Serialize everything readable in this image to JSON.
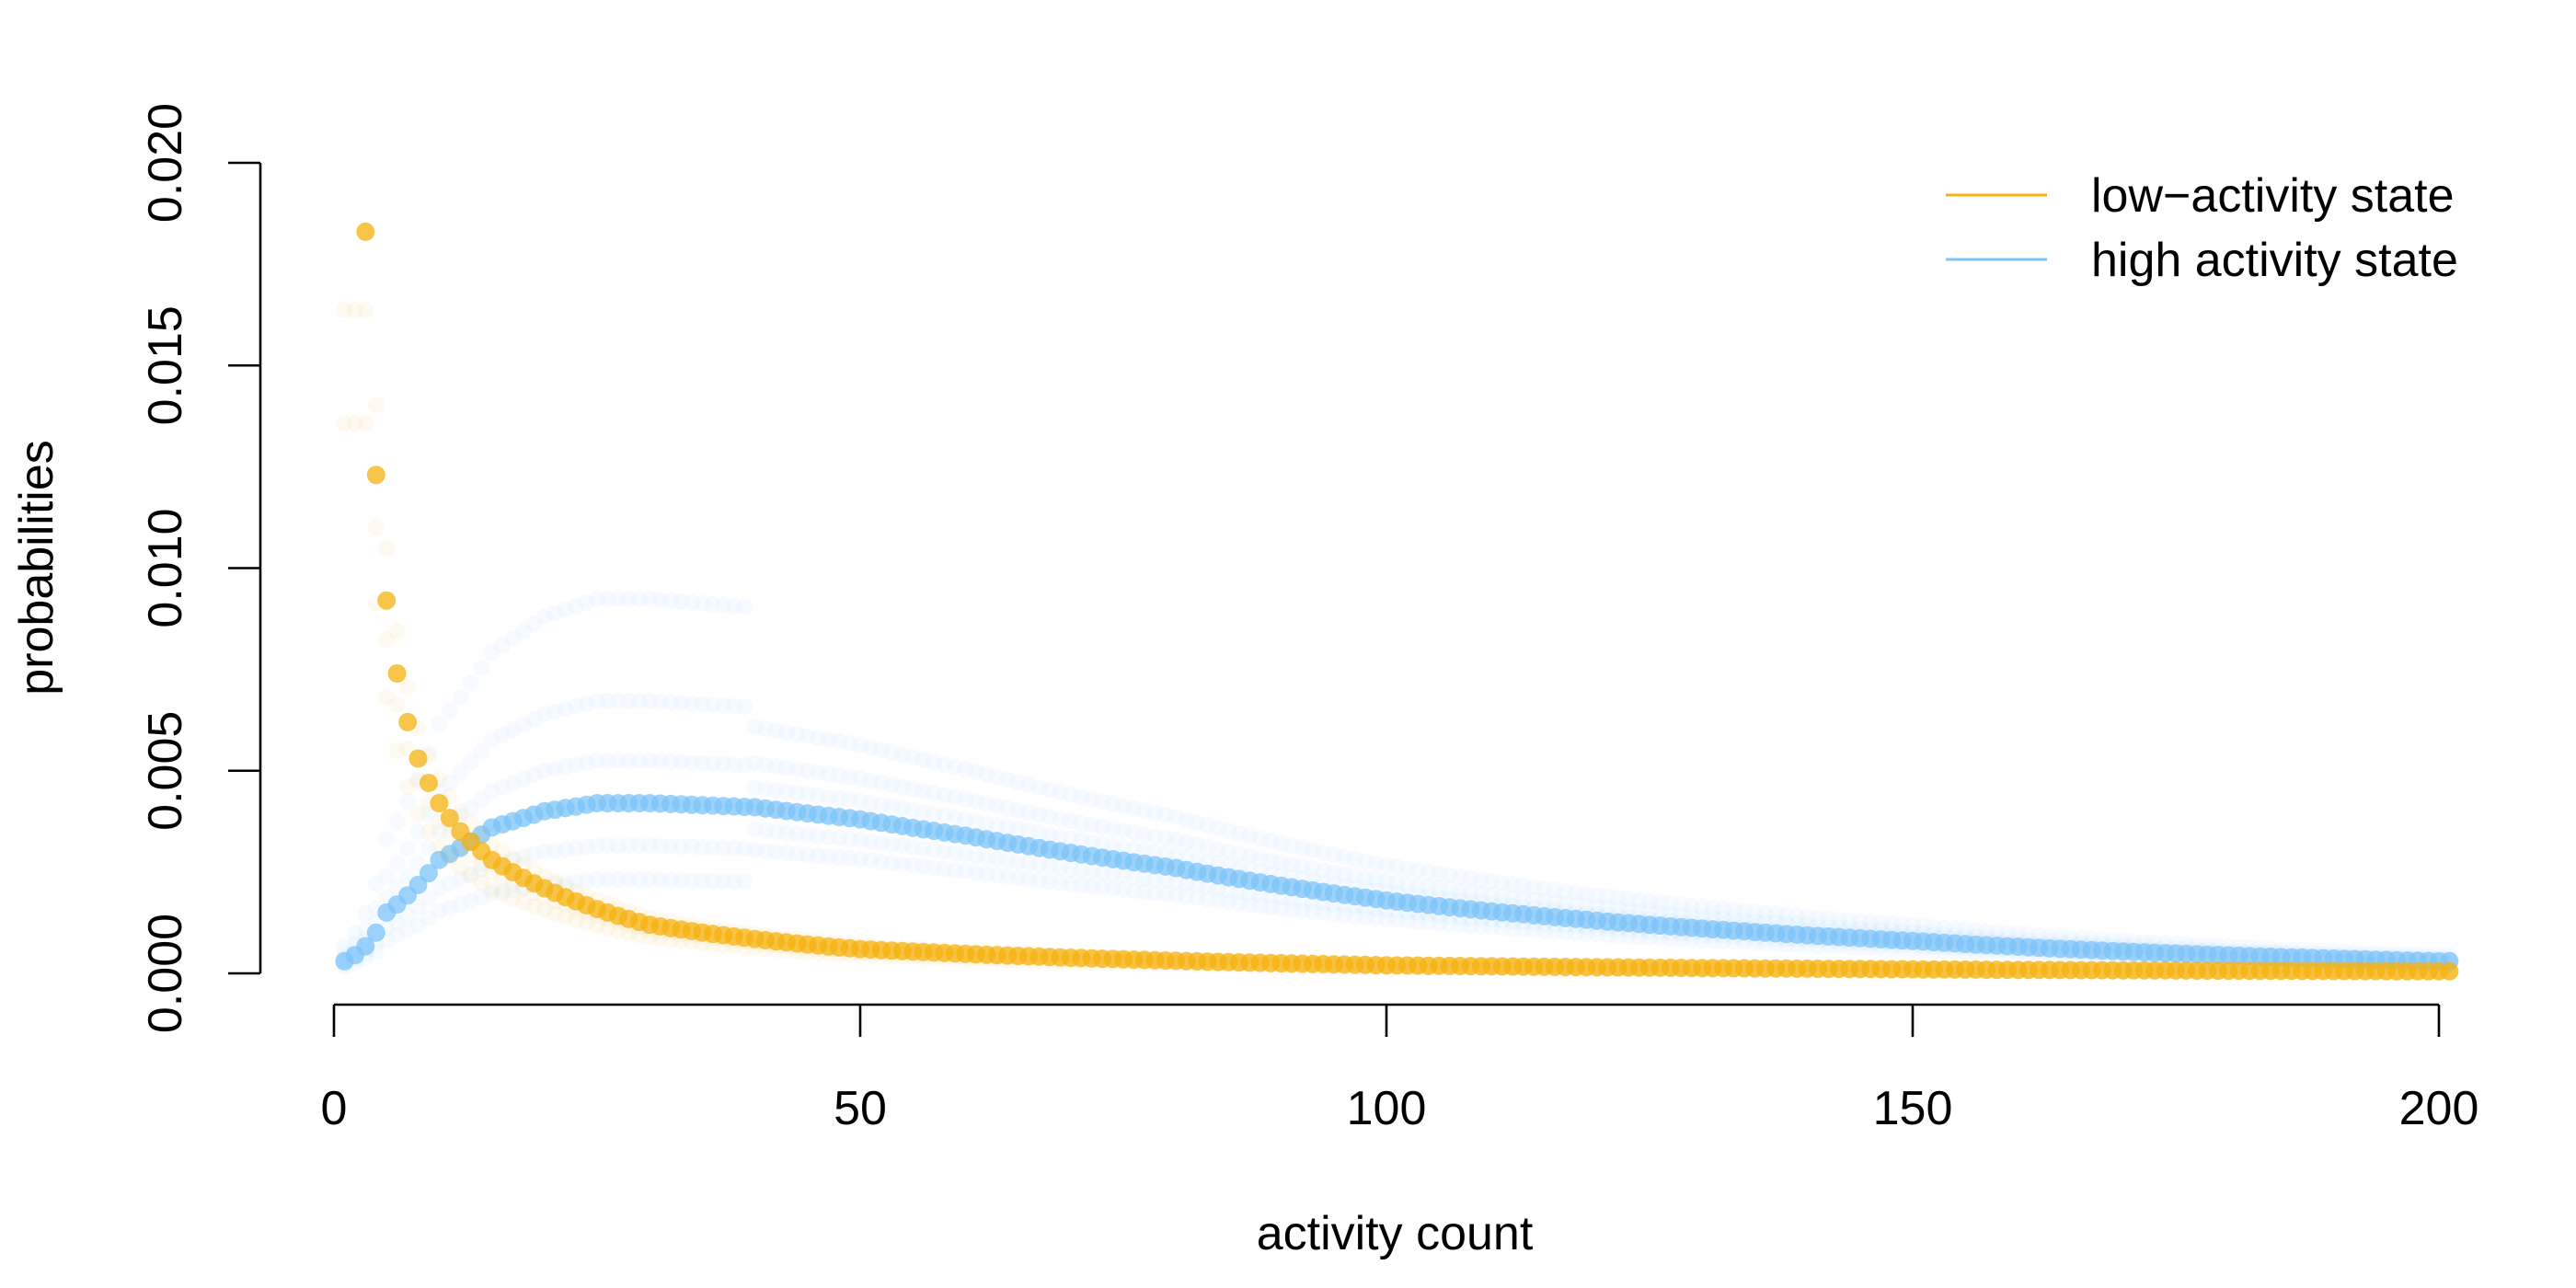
{
  "chart_data": {
    "type": "scatter",
    "title": "",
    "xlabel": "activity count",
    "ylabel": "probabilities",
    "xlim": [
      0,
      200
    ],
    "ylim": [
      0,
      0.02
    ],
    "x_ticks": [
      {
        "value": 0,
        "label": "0"
      },
      {
        "value": 50,
        "label": "50"
      },
      {
        "value": 100,
        "label": "100"
      },
      {
        "value": 150,
        "label": "150"
      },
      {
        "value": 200,
        "label": "200"
      }
    ],
    "y_ticks": [
      {
        "value": 0.0,
        "label": "0.000"
      },
      {
        "value": 0.005,
        "label": "0.005"
      },
      {
        "value": 0.01,
        "label": "0.010"
      },
      {
        "value": 0.015,
        "label": "0.015"
      },
      {
        "value": 0.02,
        "label": "0.020"
      }
    ],
    "x_range_points": [
      1,
      201
    ],
    "grid": false,
    "legend_position": "top-right",
    "series": [
      {
        "name": "low−activity state",
        "color": "#F5B10F",
        "description_values": {
          "x_samples": [
            3,
            4,
            5,
            6,
            7,
            8,
            9,
            10,
            12,
            15,
            20,
            30,
            50,
            100,
            150,
            200
          ],
          "y_samples": [
            0.0183,
            0.0123,
            0.0092,
            0.0074,
            0.0062,
            0.0053,
            0.0047,
            0.0042,
            0.0035,
            0.0028,
            0.0021,
            0.0012,
            0.0006,
            0.0002,
            0.0001,
            5e-05
          ]
        }
      },
      {
        "name": "high activity state",
        "color": "#7CC3F8",
        "description_values": {
          "x_samples": [
            1,
            5,
            10,
            15,
            20,
            25,
            30,
            40,
            50,
            60,
            80,
            100,
            120,
            150,
            200
          ],
          "y_samples": [
            0.0003,
            0.0015,
            0.0028,
            0.0036,
            0.004,
            0.0042,
            0.0042,
            0.0041,
            0.0038,
            0.0034,
            0.0026,
            0.0018,
            0.0013,
            0.0008,
            0.0003
          ]
        }
      }
    ]
  }
}
